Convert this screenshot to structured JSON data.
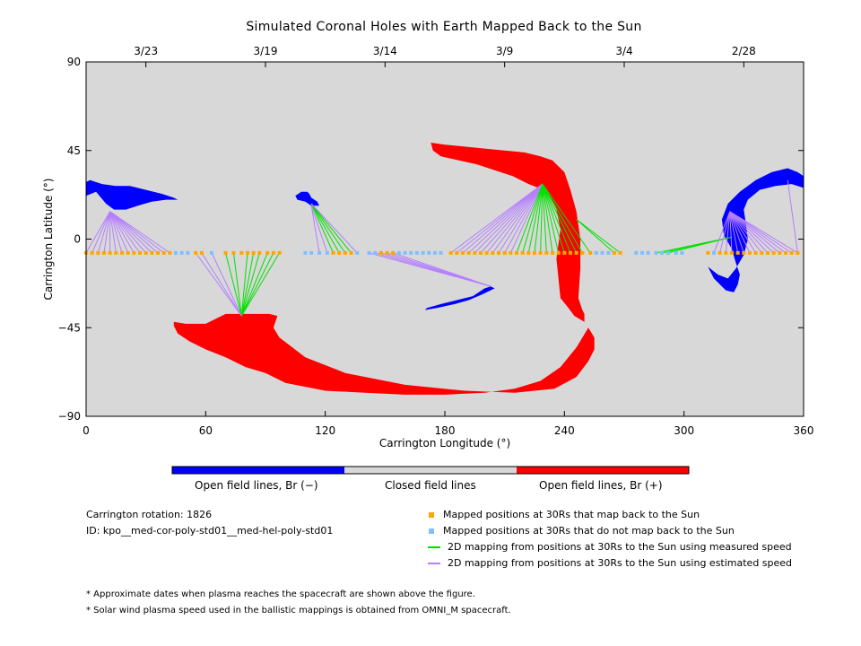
{
  "chart_data": {
    "type": "scatter",
    "title": "Simulated Coronal Holes with Earth Mapped Back to the Sun",
    "xlabel": "Carrington Longitude (°)",
    "ylabel": "Carrington Latitude (°)",
    "xlim": [
      0,
      360
    ],
    "ylim": [
      -90,
      90
    ],
    "xticks": [
      0,
      60,
      120,
      180,
      240,
      300,
      360
    ],
    "yticks": [
      90,
      45,
      0,
      -45,
      -90
    ],
    "top_axis_dates": [
      {
        "label": "3/23",
        "lon": 30
      },
      {
        "label": "3/19",
        "lon": 90
      },
      {
        "label": "3/14",
        "lon": 150
      },
      {
        "label": "3/9",
        "lon": 210
      },
      {
        "label": "3/4",
        "lon": 270
      },
      {
        "label": "2/28",
        "lon": 330
      }
    ],
    "colors": {
      "neg_open": "#0000ff",
      "pos_open": "#ff0000",
      "closed": "#d8d8d8",
      "mapped": "#ffa500",
      "unmapped": "#7fbfff",
      "measured": "#00e000",
      "estimated": "#b57fff"
    },
    "coronal_holes": [
      {
        "polarity": "negative",
        "lon": [
          0,
          2,
          8,
          15,
          22,
          30,
          38,
          44,
          46,
          40,
          33,
          26,
          20,
          14,
          10,
          5,
          0
        ],
        "lat": [
          29,
          30,
          28,
          27,
          27,
          25,
          23,
          21,
          20,
          20,
          19,
          17,
          15,
          15,
          18,
          24,
          22
        ]
      },
      {
        "polarity": "negative",
        "lon": [
          105,
          108,
          111,
          112,
          113,
          116,
          117,
          113,
          110,
          106,
          105
        ],
        "lat": [
          22,
          24,
          24,
          23,
          21,
          19,
          17,
          17,
          19,
          20,
          22
        ]
      },
      {
        "polarity": "negative",
        "lon": [
          171,
          178,
          186,
          194,
          200,
          203,
          205,
          199,
          192,
          185,
          176,
          170
        ],
        "lat": [
          -35,
          -33,
          -31,
          -29,
          -25,
          -24,
          -25,
          -28,
          -31,
          -33,
          -35,
          -36
        ]
      },
      {
        "polarity": "negative",
        "lon": [
          360,
          357,
          352,
          344,
          336,
          328,
          322,
          319,
          320,
          324,
          326,
          328,
          327,
          325,
          321,
          315,
          312,
          317,
          322,
          326,
          330,
          332,
          331,
          330,
          332,
          338,
          346,
          354,
          360
        ],
        "lat": [
          32,
          34,
          36,
          34,
          30,
          24,
          18,
          10,
          2,
          -5,
          -12,
          -18,
          -23,
          -27,
          -26,
          -20,
          -14,
          -18,
          -20,
          -15,
          -8,
          0,
          8,
          15,
          20,
          25,
          27,
          28,
          26
        ]
      },
      {
        "polarity": "positive",
        "lon": [
          173,
          180,
          190,
          200,
          210,
          220,
          228,
          234,
          240,
          243,
          246,
          248,
          248,
          247,
          249,
          250,
          250,
          245,
          242,
          238,
          236,
          238,
          236,
          232,
          227,
          222,
          214,
          205,
          196,
          187,
          178,
          174
        ],
        "lat": [
          49,
          48,
          47,
          46,
          45,
          44,
          42,
          40,
          34,
          25,
          14,
          0,
          -15,
          -30,
          -36,
          -38,
          -42,
          -39,
          -35,
          -30,
          -10,
          5,
          15,
          23,
          26,
          28,
          32,
          35,
          38,
          40,
          42,
          45
        ]
      },
      {
        "polarity": "positive",
        "lon": [
          44,
          50,
          60,
          70,
          78,
          86,
          92,
          96,
          94,
          97,
          110,
          130,
          160,
          190,
          215,
          235,
          246,
          252,
          255,
          255,
          252,
          246,
          238,
          228,
          215,
          200,
          180,
          160,
          140,
          120,
          100,
          90,
          80,
          70,
          60,
          52,
          46,
          44
        ],
        "lat": [
          -42,
          -43,
          -43,
          -38,
          -38,
          -38,
          -38,
          -39,
          -45,
          -50,
          -60,
          -68,
          -74,
          -77,
          -78,
          -76,
          -70,
          -62,
          -56,
          -50,
          -45,
          -55,
          -65,
          -72,
          -76,
          -78,
          -79,
          -79,
          -78,
          -77,
          -73,
          -68,
          -65,
          -60,
          -56,
          -52,
          -48,
          -44
        ]
      }
    ],
    "mapped_points": [
      {
        "lon": 0,
        "lat": -7,
        "mapped": true
      },
      {
        "lon": 3,
        "lat": -7,
        "mapped": true
      },
      {
        "lon": 6,
        "lat": -7,
        "mapped": true
      },
      {
        "lon": 9,
        "lat": -7,
        "mapped": true
      },
      {
        "lon": 12,
        "lat": -7,
        "mapped": true
      },
      {
        "lon": 15,
        "lat": -7,
        "mapped": true
      },
      {
        "lon": 18,
        "lat": -7,
        "mapped": true
      },
      {
        "lon": 21,
        "lat": -7,
        "mapped": true
      },
      {
        "lon": 24,
        "lat": -7,
        "mapped": true
      },
      {
        "lon": 27,
        "lat": -7,
        "mapped": true
      },
      {
        "lon": 30,
        "lat": -7,
        "mapped": true
      },
      {
        "lon": 33,
        "lat": -7,
        "mapped": true
      },
      {
        "lon": 36,
        "lat": -7,
        "mapped": true
      },
      {
        "lon": 39,
        "lat": -7,
        "mapped": true
      },
      {
        "lon": 42,
        "lat": -7,
        "mapped": true
      },
      {
        "lon": 45,
        "lat": -7,
        "mapped": false
      },
      {
        "lon": 48,
        "lat": -7,
        "mapped": false
      },
      {
        "lon": 51,
        "lat": -7,
        "mapped": false
      },
      {
        "lon": 55,
        "lat": -7,
        "mapped": true
      },
      {
        "lon": 58,
        "lat": -7,
        "mapped": true
      },
      {
        "lon": 63,
        "lat": -7,
        "mapped": false
      },
      {
        "lon": 70,
        "lat": -7,
        "mapped": true
      },
      {
        "lon": 74,
        "lat": -7,
        "mapped": true
      },
      {
        "lon": 78,
        "lat": -7,
        "mapped": true
      },
      {
        "lon": 81,
        "lat": -7,
        "mapped": true
      },
      {
        "lon": 84,
        "lat": -7,
        "mapped": true
      },
      {
        "lon": 87,
        "lat": -7,
        "mapped": true
      },
      {
        "lon": 91,
        "lat": -7,
        "mapped": true
      },
      {
        "lon": 94,
        "lat": -7,
        "mapped": true
      },
      {
        "lon": 97,
        "lat": -7,
        "mapped": true
      },
      {
        "lon": 110,
        "lat": -7,
        "mapped": false
      },
      {
        "lon": 113,
        "lat": -7,
        "mapped": false
      },
      {
        "lon": 117,
        "lat": -7,
        "mapped": false
      },
      {
        "lon": 121,
        "lat": -7,
        "mapped": false
      },
      {
        "lon": 124,
        "lat": -7,
        "mapped": true
      },
      {
        "lon": 127,
        "lat": -7,
        "mapped": true
      },
      {
        "lon": 130,
        "lat": -7,
        "mapped": true
      },
      {
        "lon": 133,
        "lat": -7,
        "mapped": true
      },
      {
        "lon": 136,
        "lat": -7,
        "mapped": false
      },
      {
        "lon": 142,
        "lat": -7,
        "mapped": false
      },
      {
        "lon": 145,
        "lat": -7,
        "mapped": false
      },
      {
        "lon": 148,
        "lat": -7,
        "mapped": true
      },
      {
        "lon": 151,
        "lat": -7,
        "mapped": true
      },
      {
        "lon": 154,
        "lat": -7,
        "mapped": true
      },
      {
        "lon": 157,
        "lat": -7,
        "mapped": false
      },
      {
        "lon": 160,
        "lat": -7,
        "mapped": false
      },
      {
        "lon": 163,
        "lat": -7,
        "mapped": false
      },
      {
        "lon": 166,
        "lat": -7,
        "mapped": false
      },
      {
        "lon": 169,
        "lat": -7,
        "mapped": false
      },
      {
        "lon": 172,
        "lat": -7,
        "mapped": false
      },
      {
        "lon": 175,
        "lat": -7,
        "mapped": false
      },
      {
        "lon": 178,
        "lat": -7,
        "mapped": false
      },
      {
        "lon": 183,
        "lat": -7,
        "mapped": true
      },
      {
        "lon": 186,
        "lat": -7,
        "mapped": true
      },
      {
        "lon": 189,
        "lat": -7,
        "mapped": true
      },
      {
        "lon": 192,
        "lat": -7,
        "mapped": true
      },
      {
        "lon": 195,
        "lat": -7,
        "mapped": true
      },
      {
        "lon": 198,
        "lat": -7,
        "mapped": true
      },
      {
        "lon": 201,
        "lat": -7,
        "mapped": true
      },
      {
        "lon": 204,
        "lat": -7,
        "mapped": true
      },
      {
        "lon": 207,
        "lat": -7,
        "mapped": true
      },
      {
        "lon": 210,
        "lat": -7,
        "mapped": true
      },
      {
        "lon": 213,
        "lat": -7,
        "mapped": true
      },
      {
        "lon": 216,
        "lat": -7,
        "mapped": true
      },
      {
        "lon": 219,
        "lat": -7,
        "mapped": true
      },
      {
        "lon": 222,
        "lat": -7,
        "mapped": true
      },
      {
        "lon": 225,
        "lat": -7,
        "mapped": true
      },
      {
        "lon": 228,
        "lat": -7,
        "mapped": true
      },
      {
        "lon": 231,
        "lat": -7,
        "mapped": true
      },
      {
        "lon": 234,
        "lat": -7,
        "mapped": true
      },
      {
        "lon": 237,
        "lat": -7,
        "mapped": true
      },
      {
        "lon": 240,
        "lat": -7,
        "mapped": true
      },
      {
        "lon": 243,
        "lat": -7,
        "mapped": true
      },
      {
        "lon": 246,
        "lat": -7,
        "mapped": true
      },
      {
        "lon": 249,
        "lat": -7,
        "mapped": true
      },
      {
        "lon": 253,
        "lat": -7,
        "mapped": true
      },
      {
        "lon": 256,
        "lat": -7,
        "mapped": false
      },
      {
        "lon": 259,
        "lat": -7,
        "mapped": false
      },
      {
        "lon": 262,
        "lat": -7,
        "mapped": false
      },
      {
        "lon": 265,
        "lat": -7,
        "mapped": true
      },
      {
        "lon": 268,
        "lat": -7,
        "mapped": true
      },
      {
        "lon": 276,
        "lat": -7,
        "mapped": false
      },
      {
        "lon": 279,
        "lat": -7,
        "mapped": false
      },
      {
        "lon": 282,
        "lat": -7,
        "mapped": false
      },
      {
        "lon": 286,
        "lat": -7,
        "mapped": false
      },
      {
        "lon": 289,
        "lat": -7,
        "mapped": false
      },
      {
        "lon": 292,
        "lat": -7,
        "mapped": false
      },
      {
        "lon": 296,
        "lat": -7,
        "mapped": false
      },
      {
        "lon": 299,
        "lat": -7,
        "mapped": false
      },
      {
        "lon": 312,
        "lat": -7,
        "mapped": true
      },
      {
        "lon": 315,
        "lat": -7,
        "mapped": false
      },
      {
        "lon": 318,
        "lat": -7,
        "mapped": true
      },
      {
        "lon": 321,
        "lat": -7,
        "mapped": true
      },
      {
        "lon": 324,
        "lat": -7,
        "mapped": true
      },
      {
        "lon": 327,
        "lat": -7,
        "mapped": true
      },
      {
        "lon": 330,
        "lat": -7,
        "mapped": true
      },
      {
        "lon": 333,
        "lat": -7,
        "mapped": true
      },
      {
        "lon": 336,
        "lat": -7,
        "mapped": true
      },
      {
        "lon": 339,
        "lat": -7,
        "mapped": true
      },
      {
        "lon": 342,
        "lat": -7,
        "mapped": true
      },
      {
        "lon": 345,
        "lat": -7,
        "mapped": true
      },
      {
        "lon": 348,
        "lat": -7,
        "mapped": true
      },
      {
        "lon": 351,
        "lat": -7,
        "mapped": true
      },
      {
        "lon": 354,
        "lat": -7,
        "mapped": true
      },
      {
        "lon": 357,
        "lat": -7,
        "mapped": true
      }
    ],
    "mapping_groups": [
      {
        "kind": "estimated",
        "foot": [
          12,
          14
        ],
        "sources": [
          0,
          3,
          6,
          9,
          12,
          15,
          18,
          21,
          24,
          27,
          30,
          33,
          36,
          39,
          42
        ]
      },
      {
        "kind": "measured",
        "foot": [
          78,
          -39
        ],
        "sources": [
          70,
          74,
          81,
          84,
          87,
          91,
          94,
          97
        ]
      },
      {
        "kind": "estimated",
        "foot": [
          78,
          -39
        ],
        "sources": [
          55,
          58,
          63
        ]
      },
      {
        "kind": "measured",
        "foot": [
          113,
          18
        ],
        "sources": [
          124,
          127,
          130,
          133
        ]
      },
      {
        "kind": "estimated",
        "foot": [
          113,
          18
        ],
        "sources": [
          136
        ]
      },
      {
        "kind": "estimated",
        "foot": [
          113,
          17
        ],
        "sources": [
          117,
          121
        ]
      },
      {
        "kind": "estimated",
        "foot": [
          203,
          -24
        ],
        "sources": [
          142,
          145,
          148,
          151,
          154
        ]
      },
      {
        "kind": "estimated",
        "foot": [
          229,
          28
        ],
        "sources": [
          183,
          186,
          189,
          192,
          195,
          198,
          201,
          204,
          207,
          210,
          213
        ]
      },
      {
        "kind": "measured",
        "foot": [
          229,
          28
        ],
        "sources": [
          216,
          219,
          222,
          225,
          228,
          231,
          234,
          237,
          240,
          243,
          246,
          249,
          253
        ]
      },
      {
        "kind": "measured",
        "foot": [
          246,
          10
        ],
        "sources": [
          265,
          268
        ]
      },
      {
        "kind": "measured",
        "foot": [
          324,
          1
        ],
        "sources": [
          286,
          289,
          292
        ]
      },
      {
        "kind": "estimated",
        "foot": [
          323,
          14
        ],
        "sources": [
          315,
          318,
          321,
          324,
          327,
          330,
          333,
          336,
          339,
          342,
          345,
          348,
          351,
          354,
          357
        ]
      },
      {
        "kind": "estimated",
        "foot": [
          352,
          30
        ],
        "sources": [
          357
        ]
      }
    ],
    "colorbar": [
      {
        "label": "Open field lines, Br (−)",
        "color": "#0000ff"
      },
      {
        "label": "Closed field lines",
        "color": "#d8d8d8"
      },
      {
        "label": "Open field lines, Br (+)",
        "color": "#ff0000"
      }
    ],
    "legend": [
      {
        "label": "Mapped positions at 30Rs that map back to the Sun",
        "kind": "square",
        "color": "#ffa500"
      },
      {
        "label": "Mapped positions at 30Rs that do not map back to the Sun",
        "kind": "square",
        "color": "#7fbfff"
      },
      {
        "label": "2D mapping from positions at 30Rs to the Sun using measured speed",
        "kind": "line",
        "color": "#00e000"
      },
      {
        "label": "2D mapping from positions at 30Rs to the Sun using estimated speed",
        "kind": "line",
        "color": "#b57fff"
      }
    ]
  },
  "info": {
    "rotation": "Carrington rotation: 1826",
    "id": "ID: kpo__med-cor-poly-std01__med-hel-poly-std01"
  },
  "notes": [
    "* Approximate dates when plasma reaches the spacecraft are shown above the figure.",
    "* Solar wind plasma speed used in the ballistic mappings is obtained from OMNI_M spacecraft."
  ]
}
